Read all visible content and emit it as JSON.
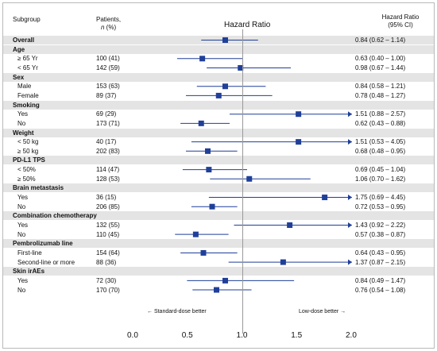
{
  "header": {
    "subgroup_label": "Subgroup",
    "patients_label_line1": "Patients,",
    "patients_label_line2": "n (%)",
    "axis_title": "Hazard Ratio",
    "hr_label_line1": "Hazard Ratio",
    "hr_label_line2": "(95% CI)"
  },
  "notes": {
    "left": "← Standard-dose better",
    "right": "Low-dose better →"
  },
  "colors": {
    "marker": "#1f3f99",
    "band": "#e4e4e4",
    "reference_line": "#999999"
  },
  "chart_data": {
    "type": "forest",
    "axis_title": "Hazard Ratio",
    "xlim": [
      0.0,
      2.0
    ],
    "xticks": [
      "0.0",
      "0.5",
      "1.0",
      "1.5",
      "2.0"
    ],
    "reference_value": 1.0,
    "rows": [
      {
        "type": "group",
        "label": "Overall",
        "patients": "",
        "hr": 0.84,
        "lo": 0.62,
        "hi": 1.14,
        "ci_text": "0.84 (0.62 – 1.14)"
      },
      {
        "type": "group",
        "label": "Age"
      },
      {
        "type": "item",
        "label": "≥  65 Yr",
        "patients": "100 (41)",
        "hr": 0.63,
        "lo": 0.4,
        "hi": 1.0,
        "ci_text": "0.63 (0.40 – 1.00)"
      },
      {
        "type": "item",
        "label": "< 65 Yr",
        "patients": "142 (59)",
        "hr": 0.98,
        "lo": 0.67,
        "hi": 1.44,
        "ci_text": "0.98 (0.67 – 1.44)"
      },
      {
        "type": "group",
        "label": "Sex"
      },
      {
        "type": "item",
        "label": "Male",
        "patients": "153 (63)",
        "hr": 0.84,
        "lo": 0.58,
        "hi": 1.21,
        "ci_text": "0.84 (0.58 – 1.21)"
      },
      {
        "type": "item",
        "label": "Female",
        "patients": "89 (37)",
        "hr": 0.78,
        "lo": 0.48,
        "hi": 1.27,
        "ci_text": "0.78 (0.48 – 1.27)"
      },
      {
        "type": "group",
        "label": "Smoking"
      },
      {
        "type": "item",
        "label": "Yes",
        "patients": "69 (29)",
        "hr": 1.51,
        "lo": 0.88,
        "hi": 2.57,
        "ci_text": "1.51 (0.88 – 2.57)"
      },
      {
        "type": "item",
        "label": "No",
        "patients": "173 (71)",
        "hr": 0.62,
        "lo": 0.43,
        "hi": 0.88,
        "ci_text": "0.62 (0.43 – 0.88)"
      },
      {
        "type": "group",
        "label": "Weight"
      },
      {
        "type": "item",
        "label": "< 50 kg",
        "patients": "40 (17)",
        "hr": 1.51,
        "lo": 0.53,
        "hi": 4.05,
        "ci_text": "1.51 (0.53 – 4.05)"
      },
      {
        "type": "item",
        "label": "≥ 50 kg",
        "patients": "202 (83)",
        "hr": 0.68,
        "lo": 0.48,
        "hi": 0.95,
        "ci_text": "0.68 (0.48 – 0.95)"
      },
      {
        "type": "group",
        "label": "PD-L1 TPS"
      },
      {
        "type": "item",
        "label": "< 50%",
        "patients": "114 (47)",
        "hr": 0.69,
        "lo": 0.45,
        "hi": 1.04,
        "ci_text": "0.69 (0.45 – 1.04)"
      },
      {
        "type": "item",
        "label": "≥ 50%",
        "patients": "128 (53)",
        "hr": 1.06,
        "lo": 0.7,
        "hi": 1.62,
        "ci_text": "1.06 (0.70 – 1.62)"
      },
      {
        "type": "group",
        "label": "Brain metastasis"
      },
      {
        "type": "item",
        "label": "Yes",
        "patients": "36 (15)",
        "hr": 1.75,
        "lo": 0.69,
        "hi": 4.45,
        "ci_text": "1.75 (0.69 – 4.45)"
      },
      {
        "type": "item",
        "label": "No",
        "patients": "206 (85)",
        "hr": 0.72,
        "lo": 0.53,
        "hi": 0.95,
        "ci_text": "0.72 (0.53 – 0.95)"
      },
      {
        "type": "group",
        "label": "Combination chemotherapy"
      },
      {
        "type": "item",
        "label": "Yes",
        "patients": "132 (55)",
        "hr": 1.43,
        "lo": 0.92,
        "hi": 2.22,
        "ci_text": "1.43 (0.92 – 2.22)"
      },
      {
        "type": "item",
        "label": "No",
        "patients": "110 (45)",
        "hr": 0.57,
        "lo": 0.38,
        "hi": 0.87,
        "ci_text": "0.57 (0.38 – 0.87)"
      },
      {
        "type": "group",
        "label": "Pembrolizumab line"
      },
      {
        "type": "item",
        "label": "First-line",
        "patients": "154 (64)",
        "hr": 0.64,
        "lo": 0.43,
        "hi": 0.95,
        "ci_text": "0.64 (0.43 – 0.95)"
      },
      {
        "type": "item",
        "label": "Second-line or more",
        "patients": "88 (36)",
        "hr": 1.37,
        "lo": 0.87,
        "hi": 2.15,
        "ci_text": "1.37 (0.87 – 2.15)"
      },
      {
        "type": "group",
        "label": "Skin irAEs"
      },
      {
        "type": "item",
        "label": "Yes",
        "patients": "72 (30)",
        "hr": 0.84,
        "lo": 0.49,
        "hi": 1.47,
        "ci_text": "0.84 (0.49 – 1.47)"
      },
      {
        "type": "item",
        "label": "No",
        "patients": "170 (70)",
        "hr": 0.76,
        "lo": 0.54,
        "hi": 1.08,
        "ci_text": "0.76 (0.54 – 1.08)"
      }
    ]
  }
}
